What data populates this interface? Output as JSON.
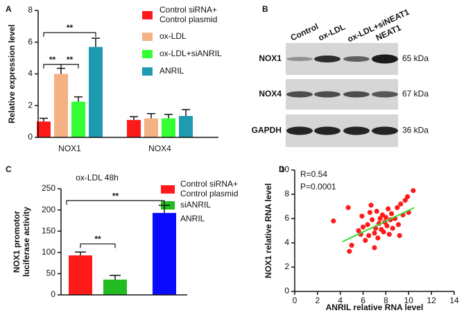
{
  "chart_data": [
    {
      "type": "bar",
      "panel": "A",
      "y_label": "Relative expression level",
      "categories": [
        "NOX1",
        "NOX4"
      ],
      "series": [
        {
          "name": "Control siRNA+\nControl plasmid",
          "color": "#ff1a1a",
          "values": [
            1.0,
            1.1
          ],
          "errors": [
            0.2,
            0.2
          ]
        },
        {
          "name": "ox-LDL",
          "color": "#f4b183",
          "values": [
            4.0,
            1.2
          ],
          "errors": [
            0.35,
            0.3
          ]
        },
        {
          "name": "ox-LDL+siANRIL",
          "color": "#33ff33",
          "values": [
            2.25,
            1.2
          ],
          "errors": [
            0.3,
            0.25
          ]
        },
        {
          "name": "ANRIL",
          "color": "#1e9bb0",
          "values": [
            5.7,
            1.35
          ],
          "errors": [
            0.55,
            0.4
          ]
        }
      ],
      "ylim": [
        0,
        8
      ],
      "yticks": [
        0,
        2,
        4,
        6,
        8
      ],
      "annotations": [
        "**",
        "**",
        "**"
      ]
    },
    {
      "type": "bar",
      "panel": "C",
      "title": "ox-LDL 48h",
      "y_label": "NOX1 promotor\nluciferase activity",
      "categories": [
        "Control siRNA+\nControl plasmid",
        "siANRIL",
        "ANRIL"
      ],
      "colors": [
        "#ff1a1a",
        "#22bb22",
        "#0a0aff"
      ],
      "values": [
        93,
        36,
        193
      ],
      "errors": [
        8,
        10,
        18
      ],
      "ylim": [
        0,
        250
      ],
      "yticks": [
        0,
        50,
        100,
        150,
        200,
        250
      ],
      "annotations": [
        "**",
        "**"
      ]
    },
    {
      "type": "scatter",
      "panel": "D",
      "x_label": "ANRIL relative RNA level",
      "y_label": "NOX1 relative RNA level",
      "annotations": [
        "R=0.54",
        "P=0.0001"
      ],
      "color": "#ff1a1a",
      "fit_color": "#33dd33",
      "x": [
        3.4,
        4.7,
        4.8,
        5.0,
        5.6,
        5.8,
        5.9,
        6.0,
        6.2,
        6.4,
        6.5,
        6.6,
        6.7,
        6.8,
        7.0,
        7.1,
        7.2,
        7.3,
        7.4,
        7.5,
        7.6,
        7.7,
        7.8,
        7.9,
        8.0,
        8.1,
        8.2,
        8.3,
        8.4,
        8.5,
        8.6,
        8.8,
        9.0,
        9.1,
        9.3,
        9.5,
        9.7,
        9.9,
        10.0,
        10.4,
        9.2,
        7.0
      ],
      "y": [
        5.8,
        6.9,
        3.3,
        3.8,
        5.0,
        4.7,
        6.2,
        5.3,
        4.2,
        5.5,
        4.6,
        6.5,
        7.1,
        5.9,
        4.8,
        5.2,
        6.6,
        4.4,
        5.6,
        6.0,
        5.1,
        6.3,
        4.9,
        5.7,
        6.1,
        5.4,
        6.8,
        4.7,
        5.9,
        6.4,
        5.2,
        6.0,
        6.9,
        5.5,
        7.2,
        6.3,
        7.5,
        7.8,
        6.5,
        8.3,
        4.6,
        3.6
      ],
      "fit": {
        "x": [
          4.2,
          10.5
        ],
        "y": [
          4.1,
          6.9
        ]
      },
      "xlim": [
        0,
        14
      ],
      "xticks": [
        0,
        2,
        4,
        6,
        8,
        10,
        12,
        14
      ],
      "ylim": [
        0,
        10
      ],
      "yticks": [
        0,
        2,
        4,
        6,
        8,
        10
      ]
    }
  ],
  "blot": {
    "panel": "B",
    "lanes": [
      "Control",
      "ox-LDL",
      "ox-LDL+siNEAT1",
      "NEAT1"
    ],
    "rows": [
      {
        "label": "NOX1",
        "size": "65 kDa"
      },
      {
        "label": "NOX4",
        "size": "67 kDa"
      },
      {
        "label": "GAPDH",
        "size": "36 kDa"
      }
    ]
  }
}
